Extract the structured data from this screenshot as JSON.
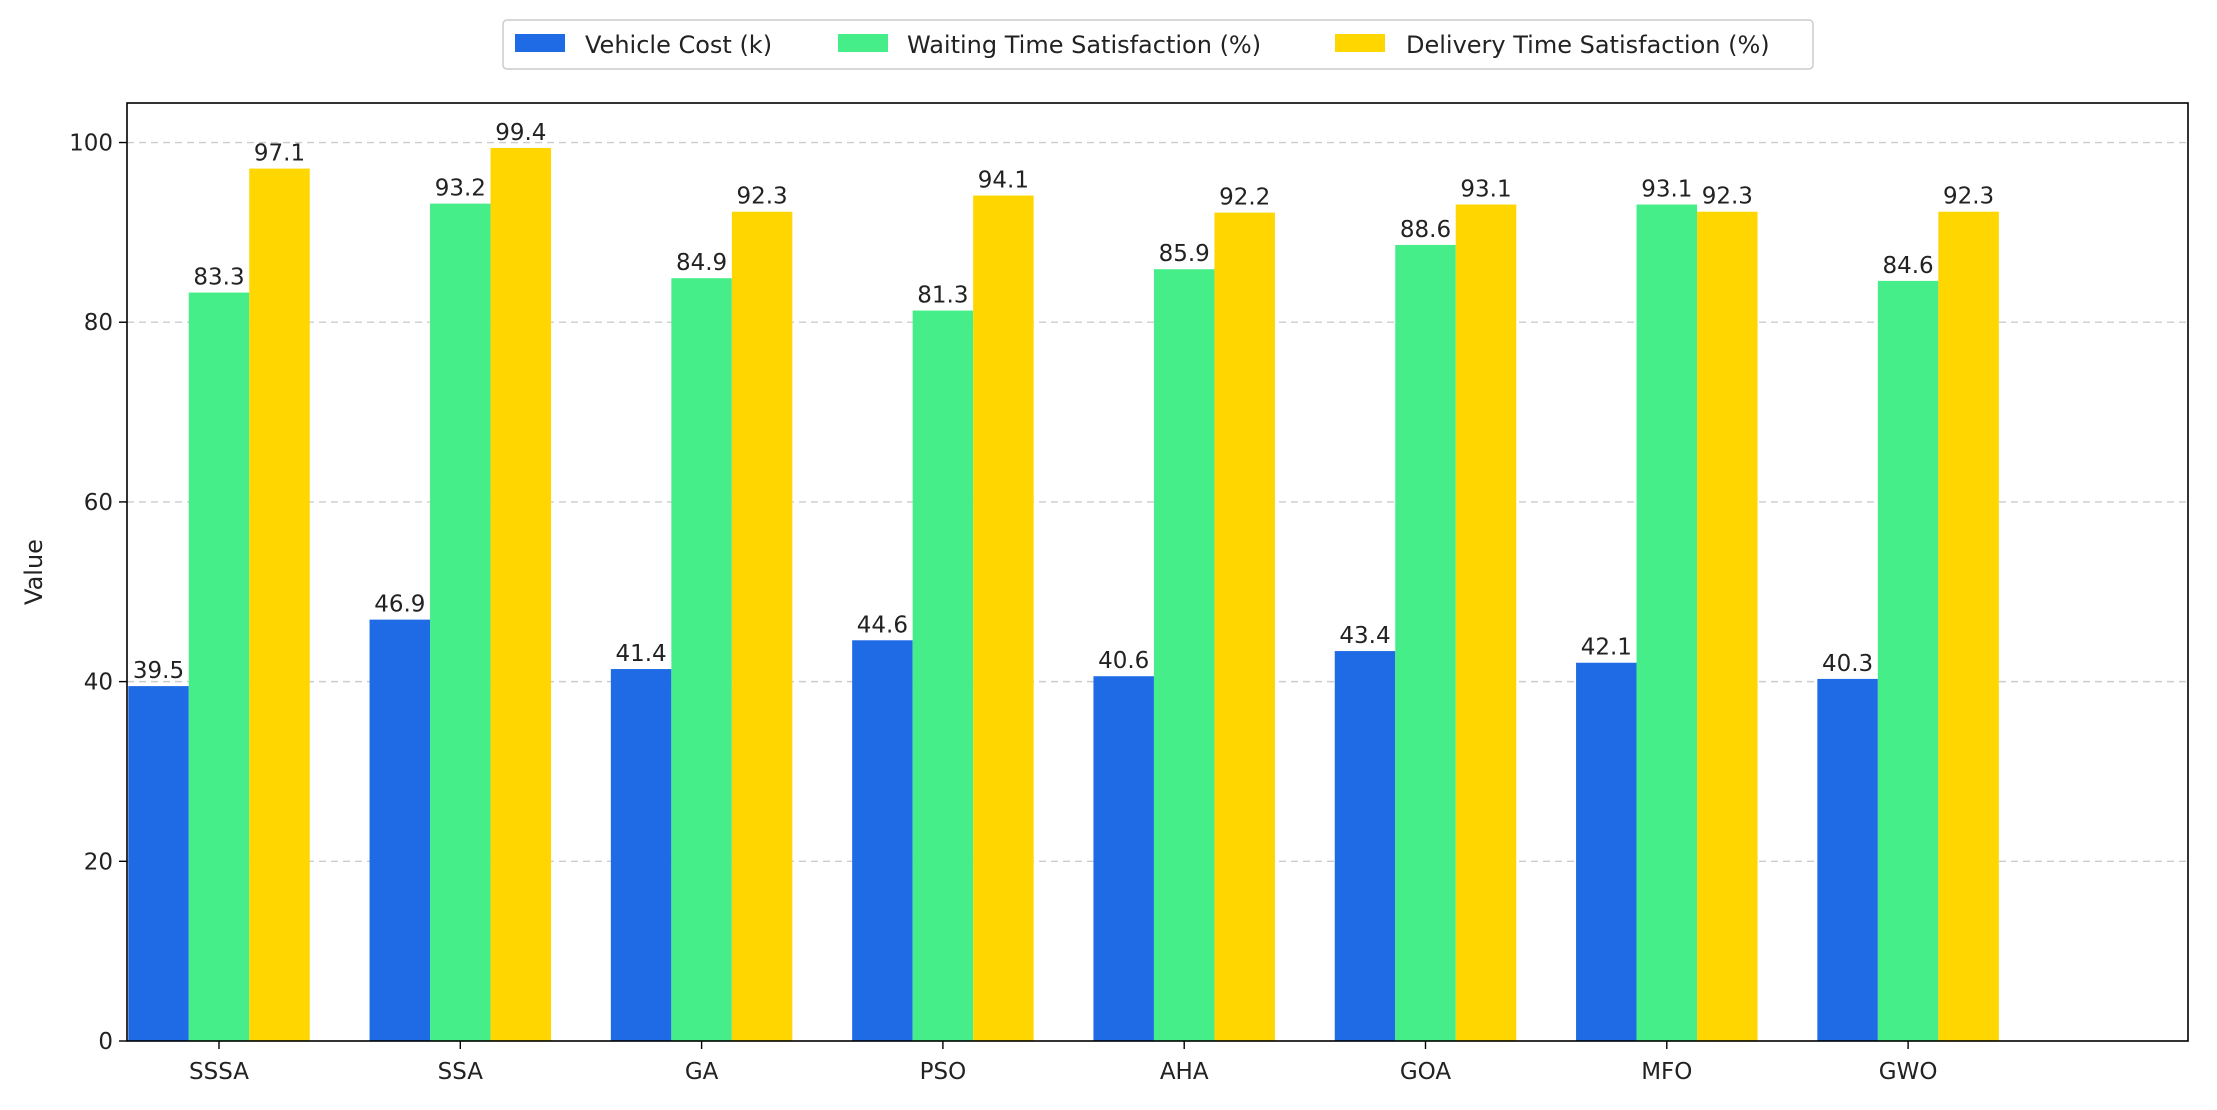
{
  "chart_data": {
    "type": "bar",
    "title": "",
    "xlabel": "",
    "ylabel": "Value",
    "ylim": [
      0,
      104.4
    ],
    "yticks": [
      0,
      20,
      40,
      60,
      80,
      100
    ],
    "grid": "y-dashed",
    "legend_position": "top-center",
    "categories": [
      "SSSA",
      "SSA",
      "GA",
      "PSO",
      "AHA",
      "GOA",
      "MFO",
      "GWO"
    ],
    "series": [
      {
        "name": "Vehicle Cost (k)",
        "color": "#1f6be6",
        "values": [
          39.5,
          46.9,
          41.4,
          44.6,
          40.6,
          43.4,
          42.1,
          40.3
        ]
      },
      {
        "name": "Waiting Time Satisfaction (%)",
        "color": "#45ee88",
        "values": [
          83.3,
          93.2,
          84.9,
          81.3,
          85.9,
          88.6,
          93.1,
          84.6
        ]
      },
      {
        "name": "Delivery Time Satisfaction (%)",
        "color": "#ffd600",
        "values": [
          97.1,
          99.4,
          92.3,
          94.1,
          92.2,
          93.1,
          92.3,
          92.3
        ]
      }
    ]
  }
}
